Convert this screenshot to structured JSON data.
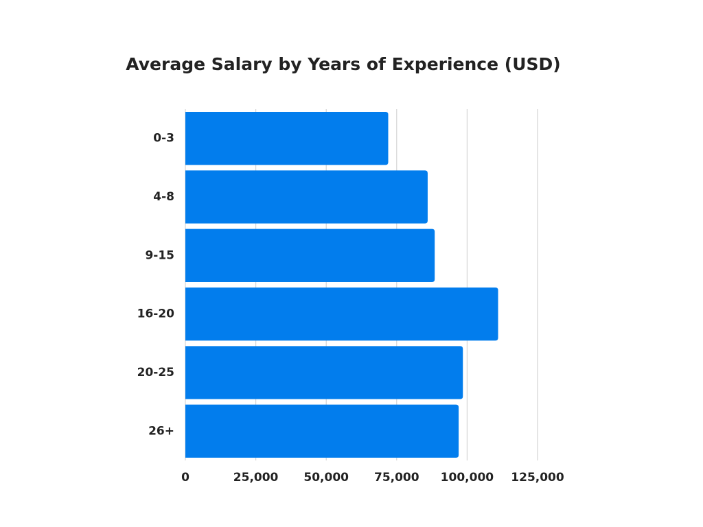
{
  "chart_data": {
    "type": "barh",
    "title": "Average Salary by Years of Experience (USD)",
    "categories": [
      "0-3",
      "4-8",
      "9-15",
      "16-20",
      "20-25",
      "26+"
    ],
    "values": [
      72000,
      86000,
      88500,
      111000,
      98500,
      97000
    ],
    "color": "#027ded",
    "xlim": [
      0,
      125000
    ],
    "xticks": [
      0,
      {
        "value": 25000,
        "label": "25,000"
      },
      {
        "value": 50000,
        "label": "50,000"
      },
      {
        "value": 75000,
        "label": "75,000"
      },
      {
        "value": 100000,
        "label": "100,000"
      },
      {
        "value": 125000,
        "label": "125,000"
      }
    ],
    "grid": true
  }
}
